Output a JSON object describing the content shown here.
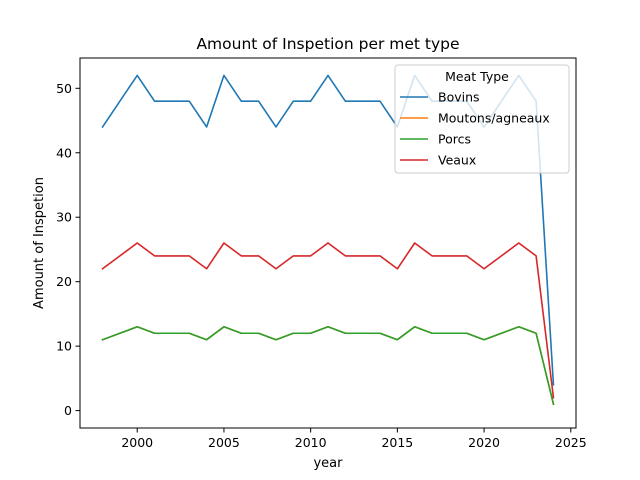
{
  "chart_data": {
    "type": "line",
    "title": "Amount of Inspetion per met type",
    "xlabel": "year",
    "ylabel": "Amount of Inspetion",
    "xlim": [
      1996.7,
      2025.3
    ],
    "ylim": [
      -2.7,
      54.7
    ],
    "xticks": [
      2000,
      2005,
      2010,
      2015,
      2020,
      2025
    ],
    "yticks": [
      0,
      10,
      20,
      30,
      40,
      50
    ],
    "grid": false,
    "legend": {
      "title": "Meat Type",
      "placement": "top-right"
    },
    "x": [
      1998,
      1999,
      2000,
      2001,
      2002,
      2003,
      2004,
      2005,
      2006,
      2007,
      2008,
      2009,
      2010,
      2011,
      2012,
      2013,
      2014,
      2015,
      2016,
      2017,
      2018,
      2019,
      2020,
      2021,
      2022,
      2023,
      2024
    ],
    "series": [
      {
        "name": "Bovins",
        "color": "#1f77b4",
        "values": [
          44,
          48,
          52,
          48,
          48,
          48,
          44,
          52,
          48,
          48,
          44,
          48,
          48,
          52,
          48,
          48,
          48,
          44,
          52,
          48,
          48,
          48,
          44,
          48,
          52,
          48,
          4
        ]
      },
      {
        "name": "Moutons/agneaux",
        "color": "#ff7f0e",
        "values": [
          11,
          12,
          13,
          12,
          12,
          12,
          11,
          13,
          12,
          12,
          11,
          12,
          12,
          13,
          12,
          12,
          12,
          11,
          13,
          12,
          12,
          12,
          11,
          12,
          13,
          12,
          1
        ]
      },
      {
        "name": "Porcs",
        "color": "#2ca02c",
        "values": [
          11,
          12,
          13,
          12,
          12,
          12,
          11,
          13,
          12,
          12,
          11,
          12,
          12,
          13,
          12,
          12,
          12,
          11,
          13,
          12,
          12,
          12,
          11,
          12,
          13,
          12,
          1
        ]
      },
      {
        "name": "Veaux",
        "color": "#d62728",
        "values": [
          22,
          24,
          26,
          24,
          24,
          24,
          22,
          26,
          24,
          24,
          22,
          24,
          24,
          26,
          24,
          24,
          24,
          22,
          26,
          24,
          24,
          24,
          22,
          24,
          26,
          24,
          2
        ]
      }
    ]
  }
}
